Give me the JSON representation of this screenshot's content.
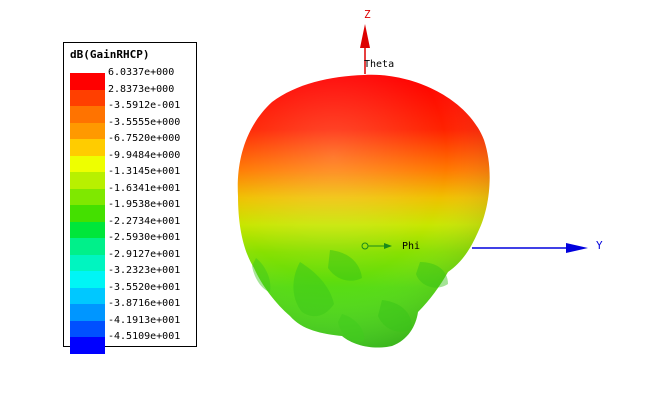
{
  "legend": {
    "title": "dB(GainRHCP)",
    "entries": [
      {
        "label": "6.0337e+000",
        "color": "#ff0000"
      },
      {
        "label": "2.8373e+000",
        "color": "#ff3f00"
      },
      {
        "label": "-3.5912e-001",
        "color": "#ff7300"
      },
      {
        "label": "-3.5555e+000",
        "color": "#ff9900"
      },
      {
        "label": "-6.7520e+000",
        "color": "#ffcc00"
      },
      {
        "label": "-9.9484e+000",
        "color": "#eeff00"
      },
      {
        "label": "-1.3145e+001",
        "color": "#b8f000"
      },
      {
        "label": "-1.6341e+001",
        "color": "#7fe800"
      },
      {
        "label": "-1.9538e+001",
        "color": "#44e000"
      },
      {
        "label": "-2.2734e+001",
        "color": "#00e63a"
      },
      {
        "label": "-2.5930e+001",
        "color": "#00f08a"
      },
      {
        "label": "-2.9127e+001",
        "color": "#00f5c0"
      },
      {
        "label": "-3.2323e+001",
        "color": "#00f5f5"
      },
      {
        "label": "-3.5520e+001",
        "color": "#00c8ff"
      },
      {
        "label": "-3.8716e+001",
        "color": "#0096ff"
      },
      {
        "label": "-4.1913e+001",
        "color": "#0050ff"
      },
      {
        "label": "-4.5109e+001",
        "color": "#0000ff"
      }
    ]
  },
  "axes": {
    "z_label": "Z",
    "y_label": "Y",
    "theta_label": "Theta",
    "phi_label": "Phi",
    "z_color": "#dd0000",
    "y_color": "#0000dd"
  }
}
